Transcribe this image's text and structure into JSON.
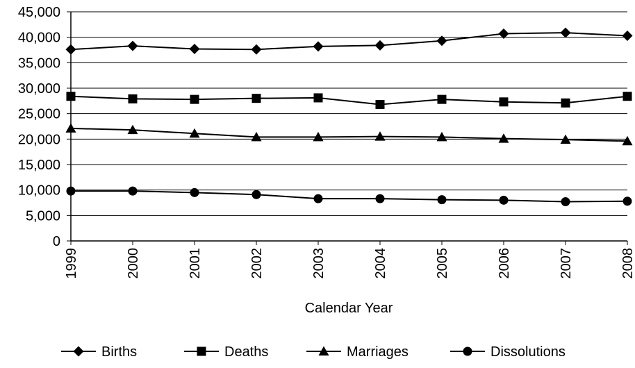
{
  "chart_data": {
    "type": "line",
    "title": "",
    "xlabel": "Calendar Year",
    "ylabel": "",
    "categories": [
      "1999",
      "2000",
      "2001",
      "2002",
      "2003",
      "2004",
      "2005",
      "2006",
      "2007",
      "2008"
    ],
    "ylim": [
      0,
      45000
    ],
    "yticks": [
      0,
      5000,
      10000,
      15000,
      20000,
      25000,
      30000,
      35000,
      40000,
      45000
    ],
    "ytick_labels": [
      "0",
      "5,000",
      "10,000",
      "15,000",
      "20,000",
      "25,000",
      "30,000",
      "35,000",
      "40,000",
      "45,000"
    ],
    "grid": true,
    "legend_position": "bottom",
    "series": [
      {
        "name": "Births",
        "marker": "diamond",
        "color": "#000000",
        "values": [
          37600,
          38300,
          37700,
          37600,
          38200,
          38400,
          39300,
          40700,
          40900,
          40300
        ]
      },
      {
        "name": "Deaths",
        "marker": "square",
        "color": "#000000",
        "values": [
          28400,
          27900,
          27800,
          28000,
          28100,
          26800,
          27800,
          27300,
          27100,
          28400
        ]
      },
      {
        "name": "Marriages",
        "marker": "triangle",
        "color": "#000000",
        "values": [
          22100,
          21800,
          21100,
          20400,
          20400,
          20500,
          20400,
          20100,
          19900,
          19600
        ]
      },
      {
        "name": "Dissolutions",
        "marker": "circle",
        "color": "#000000",
        "values": [
          9800,
          9800,
          9500,
          9100,
          8300,
          8300,
          8100,
          8000,
          7700,
          7800
        ]
      }
    ]
  }
}
